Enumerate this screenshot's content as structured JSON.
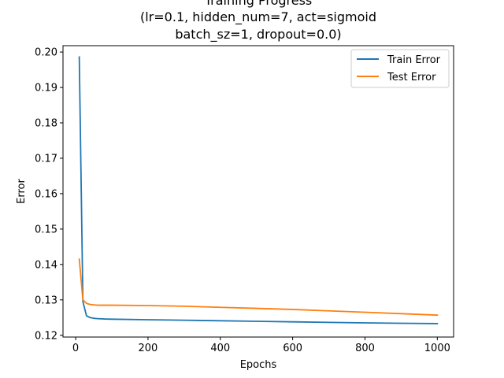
{
  "chart_data": {
    "type": "line",
    "title_lines": [
      "Training Progress",
      "(lr=0.1, hidden_num=7, act=sigmoid",
      "batch_sz=1, dropout=0.0)"
    ],
    "xlabel": "Epochs",
    "ylabel": "Error",
    "xlim": [
      -35,
      1045
    ],
    "ylim": [
      0.1195,
      0.2018
    ],
    "xticks": [
      0,
      200,
      400,
      600,
      800,
      1000
    ],
    "yticks": [
      0.12,
      0.13,
      0.14,
      0.15,
      0.16,
      0.17,
      0.18,
      0.19,
      0.2
    ],
    "ytick_labels": [
      "0.12",
      "0.13",
      "0.14",
      "0.15",
      "0.16",
      "0.17",
      "0.18",
      "0.19",
      "0.20"
    ],
    "grid": false,
    "legend_position": "top-right",
    "series": [
      {
        "name": "Train Error",
        "color": "#1f77b4",
        "x": [
          10,
          20,
          30,
          40,
          50,
          60,
          80,
          100,
          200,
          300,
          400,
          500,
          600,
          700,
          800,
          900,
          1000
        ],
        "y": [
          0.1986,
          0.1295,
          0.1255,
          0.125,
          0.1248,
          0.1247,
          0.1246,
          0.12455,
          0.1244,
          0.12425,
          0.1241,
          0.12395,
          0.1238,
          0.12365,
          0.1235,
          0.1234,
          0.1233
        ]
      },
      {
        "name": "Test Error",
        "color": "#ff7f0e",
        "x": [
          10,
          20,
          30,
          40,
          50,
          60,
          80,
          100,
          200,
          300,
          400,
          500,
          600,
          700,
          800,
          900,
          1000
        ],
        "y": [
          0.1415,
          0.13,
          0.129,
          0.1287,
          0.1286,
          0.1285,
          0.1285,
          0.1285,
          0.1284,
          0.1282,
          0.1279,
          0.1276,
          0.1273,
          0.1269,
          0.1265,
          0.1261,
          0.1257
        ]
      }
    ]
  }
}
